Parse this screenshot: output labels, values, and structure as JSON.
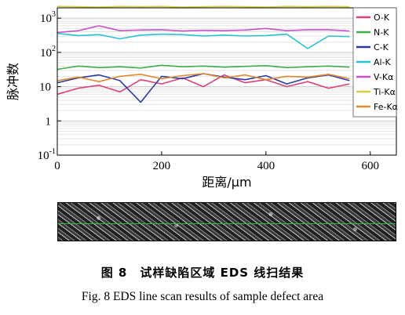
{
  "chart_data": {
    "type": "line",
    "yscale": "log",
    "ylim": [
      0.1,
      2000
    ],
    "xlim": [
      0,
      650
    ],
    "xticks": [
      0,
      200,
      400,
      600
    ],
    "ytick_labels": [
      {
        "value": 1000,
        "base": "10",
        "exp": "3"
      },
      {
        "value": 100,
        "base": "10",
        "exp": "2"
      },
      {
        "value": 10,
        "base": "10",
        "exp": ""
      },
      {
        "value": 1,
        "base": "1",
        "exp": ""
      },
      {
        "value": 0.1,
        "base": "10",
        "exp": "-1"
      }
    ],
    "xlabel": "距离/μm",
    "ylabel": "脉冲数",
    "legend_position": "top-right",
    "grid": true,
    "series": [
      {
        "name": "O-K",
        "color": "#e0407a",
        "x": [
          0,
          40,
          80,
          120,
          160,
          200,
          240,
          280,
          320,
          360,
          400,
          440,
          480,
          520,
          560
        ],
        "y": [
          6,
          9,
          11,
          7,
          16,
          12,
          18,
          10,
          22,
          13,
          16,
          10,
          14,
          9,
          12
        ]
      },
      {
        "name": "N-K",
        "color": "#3fae4a",
        "x": [
          0,
          40,
          80,
          120,
          160,
          200,
          240,
          280,
          320,
          360,
          400,
          440,
          480,
          520,
          560
        ],
        "y": [
          32,
          40,
          36,
          38,
          35,
          42,
          38,
          40,
          37,
          39,
          41,
          36,
          38,
          40,
          37
        ]
      },
      {
        "name": "C-K",
        "color": "#2b3aa8",
        "x": [
          0,
          40,
          80,
          120,
          160,
          200,
          240,
          280,
          320,
          360,
          400,
          440,
          480,
          520,
          560
        ],
        "y": [
          13,
          18,
          22,
          15,
          3.5,
          20,
          17,
          24,
          19,
          16,
          21,
          12,
          18,
          22,
          15
        ]
      },
      {
        "name": "Al-K",
        "color": "#27c1d6",
        "x": [
          0,
          40,
          80,
          120,
          160,
          200,
          240,
          280,
          320,
          360,
          400,
          440,
          480,
          520,
          560
        ],
        "y": [
          360,
          310,
          330,
          250,
          320,
          340,
          330,
          300,
          320,
          300,
          310,
          340,
          130,
          300,
          290
        ]
      },
      {
        "name": "V-Kα",
        "color": "#ca4fc8",
        "x": [
          0,
          40,
          80,
          120,
          160,
          200,
          240,
          280,
          320,
          360,
          400,
          440,
          480,
          520,
          560
        ],
        "y": [
          380,
          430,
          600,
          430,
          450,
          460,
          420,
          440,
          430,
          450,
          500,
          430,
          460,
          460,
          420
        ]
      },
      {
        "name": "Ti-Kα",
        "color": "#d9cf3f",
        "x": [
          0,
          40,
          80,
          120,
          160,
          200,
          240,
          280,
          320,
          360,
          400,
          440,
          480,
          520,
          560
        ],
        "y": [
          2200,
          2150,
          2100,
          2200,
          2150,
          2200,
          2100,
          2150,
          2200,
          2150,
          2100,
          2200,
          2150,
          2200,
          2150
        ]
      },
      {
        "name": "Fe-Kα",
        "color": "#e08a2c",
        "x": [
          0,
          40,
          80,
          120,
          160,
          200,
          240,
          280,
          320,
          360,
          400,
          440,
          480,
          520,
          560
        ],
        "y": [
          15,
          19,
          14,
          20,
          23,
          17,
          21,
          24,
          18,
          22,
          16,
          20,
          19,
          23,
          17
        ]
      }
    ]
  },
  "caption": {
    "chinese": "图 8　试样缺陷区域 EDS 线扫结果",
    "english": "Fig. 8 EDS line scan results of sample defect area"
  },
  "image": {
    "scan_line_color": "#2bbf3a"
  }
}
